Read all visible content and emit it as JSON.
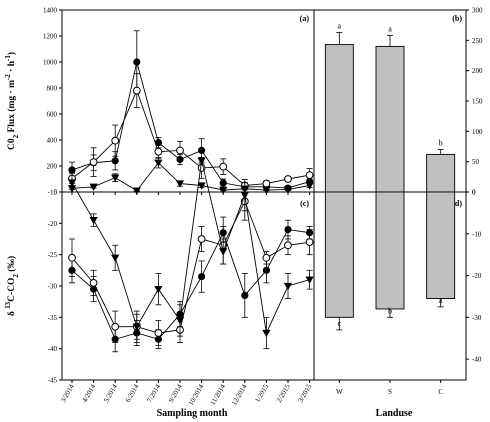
{
  "chart_data": [
    {
      "panel": "(a)",
      "type": "line",
      "ylabel": "C02 Flux (mg · m-2 · h-1)",
      "ylabel_parts": [
        "C0",
        "2",
        " Flux (mg · m",
        "-2",
        " · h",
        "-1",
        ")"
      ],
      "ylim": [
        0,
        1400
      ],
      "yticks": [
        0,
        200,
        400,
        600,
        800,
        1000,
        1200,
        1400
      ],
      "x": [
        "3/2014",
        "4/2014",
        "5/2014",
        "6/2014",
        "7/2014",
        "9/2014",
        "10/2014",
        "11/2014",
        "12/2014",
        "1/2015",
        "2/2015",
        "3/2015"
      ],
      "series": [
        {
          "marker": "filled-circle",
          "values": [
            170,
            225,
            240,
            1000,
            380,
            250,
            320,
            70,
            40,
            40,
            30,
            80
          ],
          "errors": [
            60,
            60,
            70,
            240,
            40,
            40,
            90,
            30,
            15,
            10,
            10,
            20
          ]
        },
        {
          "marker": "open-circle",
          "values": [
            105,
            230,
            395,
            780,
            310,
            320,
            185,
            195,
            50,
            65,
            100,
            130
          ],
          "errors": [
            40,
            110,
            120,
            130,
            50,
            70,
            80,
            60,
            15,
            20,
            20,
            50
          ]
        },
        {
          "marker": "filled-triangle-down",
          "values": [
            28,
            40,
            110,
            10,
            225,
            65,
            50,
            15,
            25,
            15,
            20,
            50
          ],
          "errors": [
            10,
            10,
            30,
            5,
            40,
            20,
            15,
            5,
            10,
            5,
            10,
            15
          ]
        }
      ]
    },
    {
      "panel": "(b)",
      "type": "bar",
      "ylim": [
        0,
        300
      ],
      "yticks": [
        0,
        50,
        100,
        150,
        200,
        250,
        300
      ],
      "categories": [
        "W",
        "S",
        "C"
      ],
      "values": [
        243,
        240,
        62
      ],
      "errors": [
        20,
        18,
        8
      ],
      "letters": [
        "a",
        "a",
        "b"
      ]
    },
    {
      "panel": "(c)",
      "type": "line",
      "ylabel": "δ 13C-CO2 (‰)",
      "ylabel_parts": [
        "δ ",
        "13",
        "C-CO",
        "2",
        " (‰)"
      ],
      "ylim": [
        -45,
        -15
      ],
      "yticks": [
        -45,
        -40,
        -35,
        -30,
        -25,
        -20,
        -15
      ],
      "x": [
        "3/2014",
        "4/2014",
        "5/2014",
        "6/2014",
        "7/2014",
        "9/2014",
        "10/2014",
        "11/2014",
        "12/2014",
        "1/2015",
        "2/2015",
        "3/2015"
      ],
      "xlabel": "Sampling month",
      "series": [
        {
          "marker": "filled-circle",
          "values": [
            -27.5,
            -30.5,
            -38.5,
            -37.5,
            -38.5,
            -34.5,
            -28.5,
            -21.5,
            -31.5,
            -27.5,
            -21.0,
            -21.5
          ],
          "errors": [
            2.0,
            2.0,
            2.0,
            2.0,
            1.5,
            2.0,
            2.5,
            2.5,
            3.5,
            2.0,
            1.5,
            1.0
          ]
        },
        {
          "marker": "open-circle",
          "values": [
            -25.5,
            -29.5,
            -36.5,
            -36.5,
            -37.5,
            -37.0,
            -22.5,
            -23.5,
            -16.5,
            -25.5,
            -23.5,
            -23.0
          ],
          "errors": [
            3.0,
            2.0,
            2.5,
            2.0,
            2.0,
            2.0,
            2.0,
            3.0,
            3.0,
            1.0,
            1.5,
            2.0
          ]
        },
        {
          "marker": "filled-triangle-down",
          "values": [
            -13.5,
            -19.5,
            -25.5,
            -36.5,
            -30.5,
            -35.5,
            -10.0,
            -24.5,
            -15.5,
            -37.5,
            -30.0,
            -29.0
          ],
          "errors": [
            1.5,
            1.0,
            2.0,
            2.5,
            2.5,
            2.5,
            0.5,
            2.0,
            2.5,
            2.5,
            2.0,
            1.5
          ]
        }
      ]
    },
    {
      "panel": "(d)",
      "type": "bar",
      "ylim": [
        -45,
        0
      ],
      "yticks": [
        0,
        -10,
        -20,
        -30,
        -40
      ],
      "categories": [
        "W",
        "S",
        "C"
      ],
      "values": [
        -30,
        -28,
        -25.5
      ],
      "errors": [
        3.0,
        2.0,
        2.0
      ],
      "letters": [
        "c",
        "b",
        "a"
      ],
      "xlabel": "Landuse"
    }
  ]
}
